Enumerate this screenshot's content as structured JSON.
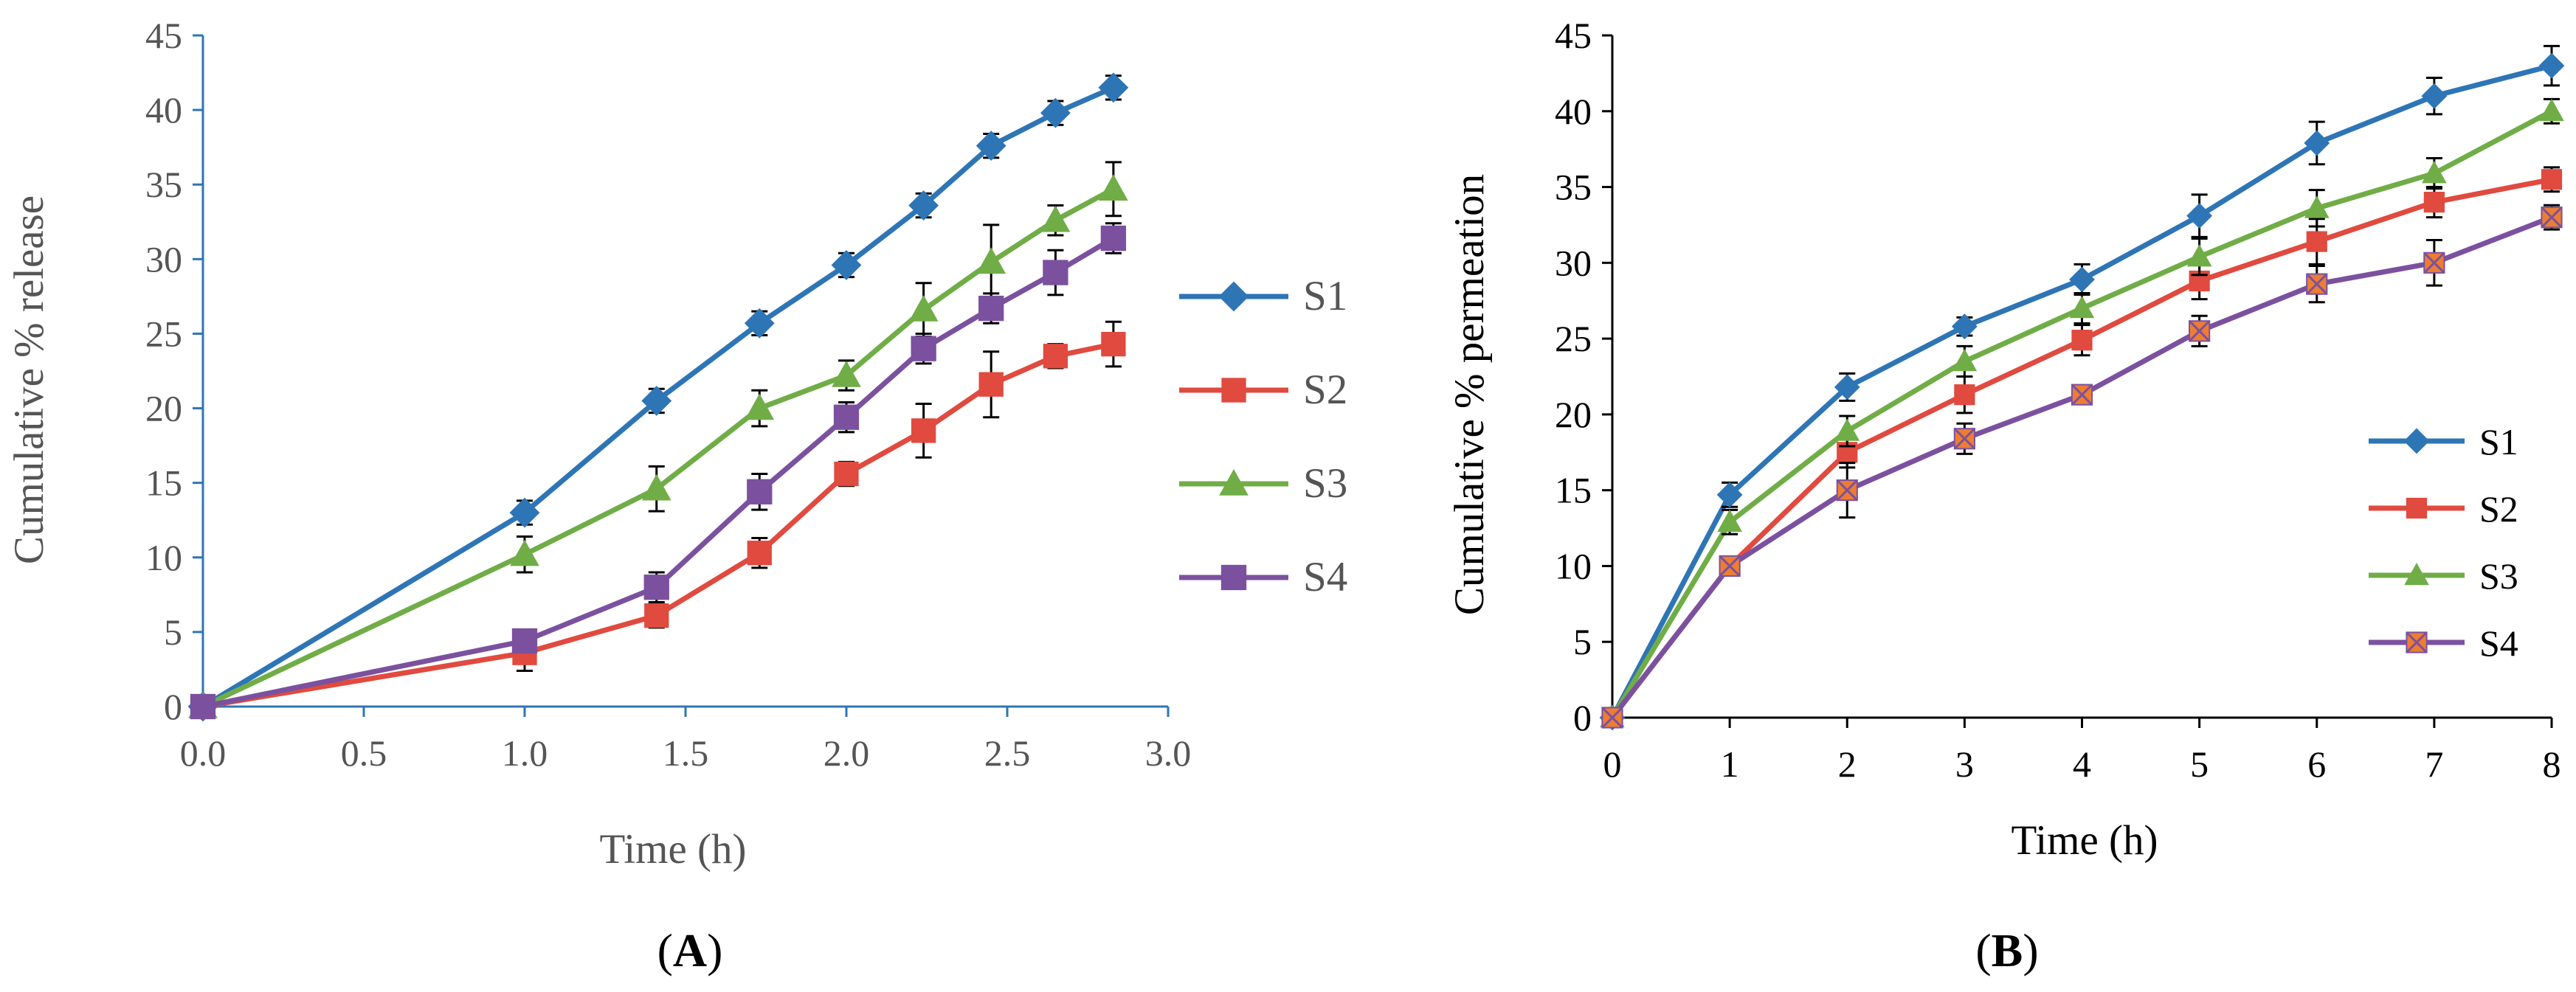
{
  "chart_data": [
    {
      "panel_label": "A",
      "type": "line",
      "title": "",
      "xlabel": "Time (h)",
      "ylabel": "Cumulative % release",
      "xlim": [
        0,
        3.0
      ],
      "ylim": [
        0,
        45
      ],
      "xticks": [
        "0.0",
        "0.5",
        "1.0",
        "1.5",
        "2.0",
        "2.5",
        "3.0"
      ],
      "yticks": [
        "0",
        "5",
        "10",
        "15",
        "20",
        "25",
        "30",
        "35",
        "40",
        "45"
      ],
      "x": [
        0,
        1.0,
        1.41,
        1.73,
        2.0,
        2.24,
        2.45,
        2.65,
        2.83
      ],
      "legend_position": "right",
      "series": [
        {
          "name": "S1",
          "color": "#2E75B6",
          "marker": "diamond",
          "values": [
            0,
            13.0,
            20.5,
            25.7,
            29.6,
            33.6,
            37.6,
            39.8,
            41.5
          ],
          "errors": [
            0,
            0.8,
            0.8,
            0.8,
            0.8,
            0.8,
            0.8,
            0.8,
            0.8
          ]
        },
        {
          "name": "S2",
          "color": "#E04A3F",
          "marker": "square",
          "values": [
            0,
            3.6,
            6.1,
            10.3,
            15.6,
            18.5,
            21.6,
            23.5,
            24.3
          ],
          "errors": [
            0,
            1.2,
            0.8,
            1.0,
            0.8,
            1.8,
            2.2,
            0.8,
            1.5
          ]
        },
        {
          "name": "S3",
          "color": "#70AD47",
          "marker": "triangle",
          "values": [
            0,
            10.2,
            14.6,
            20.0,
            22.2,
            26.6,
            29.8,
            32.6,
            34.7
          ],
          "errors": [
            0,
            1.2,
            1.5,
            1.2,
            1.0,
            1.8,
            2.5,
            1.0,
            1.8
          ]
        },
        {
          "name": "S4",
          "color": "#7B519F",
          "marker": "cross-square",
          "values": [
            0,
            4.4,
            8.0,
            14.4,
            19.4,
            24.0,
            26.7,
            29.1,
            31.4
          ],
          "errors": [
            0,
            0.6,
            1.0,
            1.2,
            1.0,
            1.0,
            1.0,
            1.5,
            1.0
          ]
        }
      ]
    },
    {
      "panel_label": "B",
      "type": "line",
      "title": "",
      "xlabel": "Time (h)",
      "ylabel": "Cumulative % permeation",
      "xlim": [
        0,
        8
      ],
      "ylim": [
        0,
        45
      ],
      "xticks": [
        "0",
        "1",
        "2",
        "3",
        "4",
        "5",
        "6",
        "7",
        "8"
      ],
      "yticks": [
        "0",
        "5",
        "10",
        "15",
        "20",
        "25",
        "30",
        "35",
        "40",
        "45"
      ],
      "x": [
        0,
        1,
        2,
        3,
        4,
        5,
        6,
        7,
        8
      ],
      "legend_position": "right",
      "series": [
        {
          "name": "S1",
          "color": "#2E75B6",
          "marker": "diamond",
          "values": [
            0,
            14.7,
            21.8,
            25.8,
            28.9,
            33.1,
            37.9,
            41.0,
            43.0
          ],
          "errors": [
            0,
            0.8,
            0.9,
            0.6,
            1.0,
            1.4,
            1.4,
            1.2,
            1.3
          ]
        },
        {
          "name": "S2",
          "color": "#E04A3F",
          "marker": "square",
          "values": [
            0,
            10.0,
            17.5,
            21.3,
            24.9,
            28.8,
            31.4,
            34.0,
            35.5
          ],
          "errors": [
            0,
            0.6,
            1.0,
            1.2,
            1.0,
            1.2,
            1.5,
            1.0,
            0.8
          ]
        },
        {
          "name": "S3",
          "color": "#70AD47",
          "marker": "triangle",
          "values": [
            0,
            12.9,
            18.9,
            23.5,
            27.0,
            30.4,
            33.6,
            35.9,
            40.0
          ],
          "errors": [
            0,
            0.8,
            1.0,
            1.0,
            1.0,
            1.2,
            1.2,
            1.0,
            0.8
          ]
        },
        {
          "name": "S4",
          "color": "#ED7D31",
          "stroke": "#7B519F",
          "marker": "cross-square",
          "values": [
            0,
            10.0,
            15.0,
            18.4,
            21.3,
            25.5,
            28.6,
            30.0,
            33.0
          ],
          "errors": [
            0,
            0.6,
            1.8,
            1.0,
            0.6,
            1.0,
            1.2,
            1.5,
            0.8
          ]
        }
      ]
    }
  ]
}
